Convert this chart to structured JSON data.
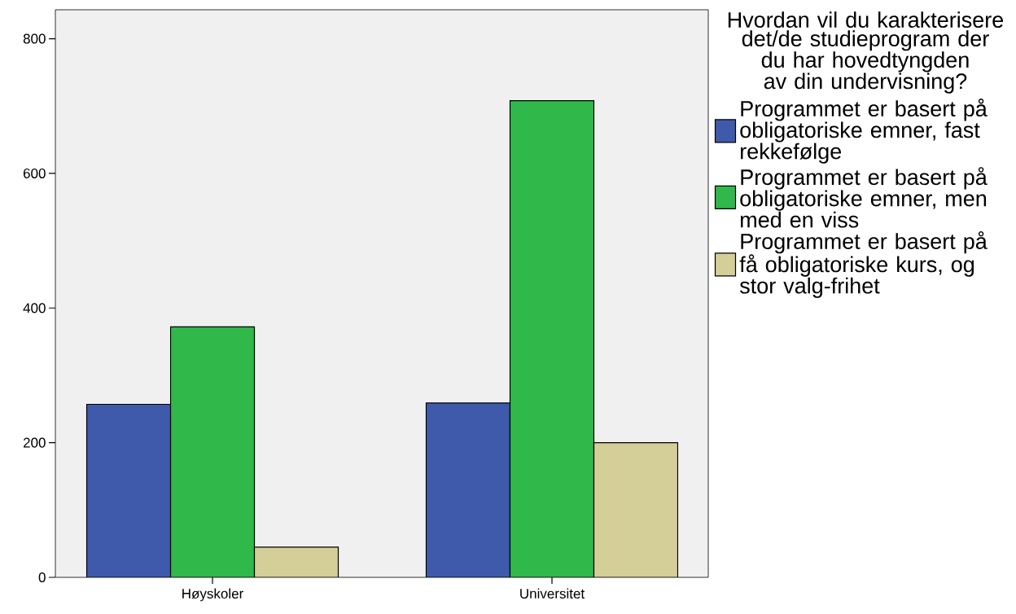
{
  "chart_data": {
    "type": "bar",
    "categories": [
      "Høyskoler",
      "Universitet"
    ],
    "series": [
      {
        "name": "Programmet er basert på obligatoriske emner, fast rekkefølge",
        "color": "#3f59ab",
        "values": [
          257,
          259
        ]
      },
      {
        "name": "Programmet er basert på obligatoriske emner, men med en viss",
        "color": "#30b84a",
        "values": [
          372,
          708
        ]
      },
      {
        "name": "Programmet er basert på få obligatoriske kurs, og stor valg-frihet",
        "color": "#d4cf98",
        "values": [
          45,
          200
        ]
      }
    ],
    "ylim": [
      0,
      843
    ],
    "yticks": [
      0,
      200,
      400,
      600,
      800
    ],
    "legend_title": "Hvordan vil du karakterisere det/de studieprogram der du har hovedtyngden av din undervisning?",
    "legend": "right",
    "grid": false
  }
}
